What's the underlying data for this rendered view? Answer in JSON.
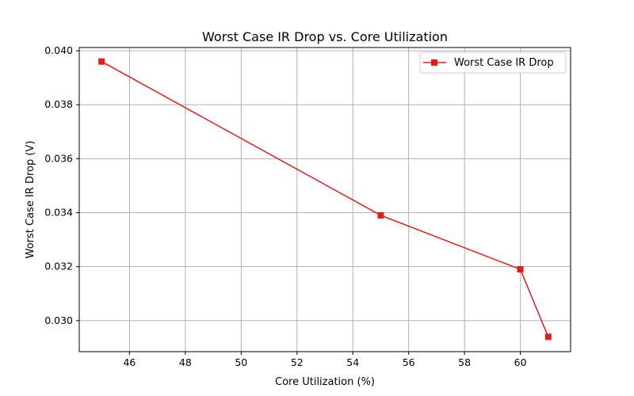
{
  "chart_data": {
    "type": "line",
    "title": "Worst Case IR Drop vs. Core Utilization",
    "xlabel": "Core Utilization (%)",
    "ylabel": "Worst Case IR Drop (V)",
    "xlim": [
      44.2,
      61.8
    ],
    "ylim": [
      0.02885,
      0.04012
    ],
    "xticks": [
      46,
      48,
      50,
      52,
      54,
      56,
      58,
      60
    ],
    "xtick_labels": [
      "46",
      "48",
      "50",
      "52",
      "54",
      "56",
      "58",
      "60"
    ],
    "yticks": [
      0.03,
      0.032,
      0.034,
      0.036,
      0.038,
      0.04
    ],
    "ytick_labels": [
      "0.030",
      "0.032",
      "0.034",
      "0.036",
      "0.038",
      "0.040"
    ],
    "grid": true,
    "legend_position": "top-right",
    "series": [
      {
        "name": "Worst Case IR Drop",
        "color": "#e41a1c",
        "marker": "square",
        "x": [
          45,
          55,
          60,
          61
        ],
        "y": [
          0.0396,
          0.0339,
          0.0319,
          0.0294
        ]
      }
    ]
  }
}
